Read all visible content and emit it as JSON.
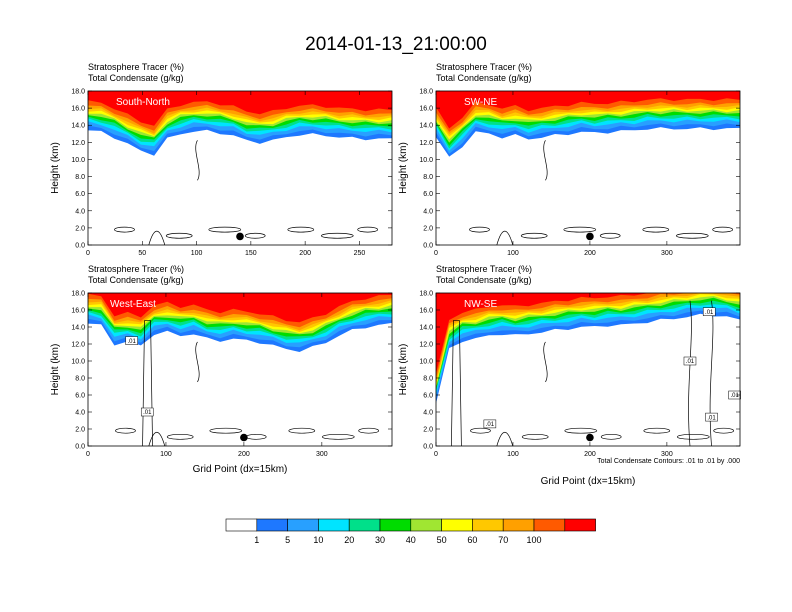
{
  "title": "2014-01-13_21:00:00",
  "colors": {
    "levels": [
      "#ffffff",
      "#1e78ff",
      "#28a0ff",
      "#00e4ff",
      "#00e08a",
      "#00dc00",
      "#a0e632",
      "#ffff00",
      "#ffc800",
      "#ffa000",
      "#ff5a00",
      "#ff0000"
    ],
    "marker": "#000000",
    "contour": "#000000"
  },
  "footnote": "Total Condensate Contours: .01 to .01 by .000",
  "x_axis_title": "Grid Point (dx=15km)",
  "y_axis_title": "Height (km)",
  "colorbar": {
    "labels": [
      "1",
      "5",
      "10",
      "20",
      "30",
      "40",
      "50",
      "60",
      "70",
      "100"
    ]
  },
  "chart_data": [
    {
      "type": "heatmap",
      "subtitle_left_1": "Stratosphere Tracer   (%)",
      "subtitle_left_2": "Total Condensate   (g/kg)",
      "panel_label": "South-North",
      "ylabel": "Height (km)",
      "xlabel": "",
      "xlim": [
        0,
        280
      ],
      "ylim": [
        0,
        18
      ],
      "xticks": [
        "0",
        "50",
        "100",
        "150",
        "200",
        "250"
      ],
      "xtick_values": [
        0,
        50,
        100,
        150,
        200,
        250
      ],
      "yticks": [
        "0.0",
        "2.0",
        "4.0",
        "6.0",
        "8.0",
        "10.0",
        "12.0",
        "14.0",
        "16.0",
        "18.0"
      ],
      "ytick_values": [
        0,
        2,
        4,
        6,
        8,
        10,
        12,
        14,
        16,
        18
      ],
      "marker_point": [
        140,
        1.0
      ],
      "tropopause_km": [
        14.4,
        14.2,
        13.6,
        12.8,
        12.0,
        11.6,
        13.4,
        14.0,
        14.3,
        14.3,
        14.1,
        13.8,
        13.2,
        13.0,
        13.2,
        13.6,
        13.9,
        13.9,
        13.8,
        13.6,
        13.5,
        13.4,
        13.4,
        13.4
      ],
      "contour_labels": []
    },
    {
      "type": "heatmap",
      "subtitle_left_1": "Stratosphere Tracer   (%)",
      "subtitle_left_2": "Total Condensate   (g/kg)",
      "panel_label": "SW-NE",
      "ylabel": "Height (km)",
      "xlabel": "",
      "xlim": [
        0,
        395
      ],
      "ylim": [
        0,
        18
      ],
      "xticks": [
        "0",
        "100",
        "200",
        "300"
      ],
      "xtick_values": [
        0,
        100,
        200,
        300
      ],
      "yticks": [
        "0.0",
        "2.0",
        "4.0",
        "6.0",
        "8.0",
        "10.0",
        "12.0",
        "14.0",
        "16.0",
        "18.0"
      ],
      "ytick_values": [
        0,
        2,
        4,
        6,
        8,
        10,
        12,
        14,
        16,
        18
      ],
      "marker_point": [
        200,
        1.0
      ],
      "tropopause_km": [
        13.6,
        11.2,
        12.6,
        14.2,
        14.0,
        13.6,
        13.8,
        13.4,
        13.6,
        13.8,
        14.0,
        14.2,
        14.1,
        14.2,
        14.3,
        14.4,
        14.6,
        14.6,
        14.6,
        14.6,
        14.6,
        14.6,
        14.6,
        14.6
      ],
      "contour_labels": []
    },
    {
      "type": "heatmap",
      "subtitle_left_1": "Stratosphere Tracer   (%)",
      "subtitle_left_2": "Total Condensate   (g/kg)",
      "panel_label": "West-East",
      "ylabel": "Height (km)",
      "xlabel": "Grid Point (dx=15km)",
      "xlim": [
        0,
        390
      ],
      "ylim": [
        0,
        18
      ],
      "xticks": [
        "0",
        "100",
        "200",
        "300"
      ],
      "xtick_values": [
        0,
        100,
        200,
        300
      ],
      "yticks": [
        "0.0",
        "2.0",
        "4.0",
        "6.0",
        "8.0",
        "10.0",
        "12.0",
        "14.0",
        "16.0",
        "18.0"
      ],
      "ytick_values": [
        0,
        2,
        4,
        6,
        8,
        10,
        12,
        14,
        16,
        18
      ],
      "marker_point": [
        200,
        1.0
      ],
      "tropopause_km": [
        15.4,
        15.2,
        13.0,
        13.2,
        12.8,
        14.2,
        14.4,
        14.0,
        14.2,
        13.6,
        13.4,
        13.6,
        13.4,
        13.2,
        12.8,
        12.4,
        12.2,
        12.6,
        13.2,
        14.0,
        14.6,
        15.0,
        15.2,
        15.4
      ],
      "contour_labels": [
        {
          "text": ".01",
          "x": 56,
          "y": 12.4
        },
        {
          "text": ".01",
          "x": 76,
          "y": 4.0
        }
      ]
    },
    {
      "type": "heatmap",
      "subtitle_left_1": "Stratosphere Tracer   (%)",
      "subtitle_left_2": "Total Condensate   (g/kg)",
      "panel_label": "NW-SE",
      "ylabel": "Height (km)",
      "xlabel": "Grid Point (dx=15km)",
      "xlim": [
        0,
        395
      ],
      "ylim": [
        0,
        18
      ],
      "xticks": [
        "0",
        "100",
        "200",
        "300"
      ],
      "xtick_values": [
        0,
        100,
        200,
        300
      ],
      "yticks": [
        "0.0",
        "2.0",
        "4.0",
        "6.0",
        "8.0",
        "10.0",
        "12.0",
        "14.0",
        "16.0",
        "18.0"
      ],
      "ytick_values": [
        0,
        2,
        4,
        6,
        8,
        10,
        12,
        14,
        16,
        18
      ],
      "marker_point": [
        200,
        1.0
      ],
      "tropopause_km": [
        6.0,
        12.4,
        13.4,
        13.6,
        14.0,
        14.2,
        14.0,
        14.2,
        14.4,
        14.6,
        14.8,
        15.0,
        15.0,
        15.2,
        15.2,
        15.4,
        15.6,
        15.8,
        16.0,
        16.2,
        16.4,
        16.4,
        16.2,
        15.8
      ],
      "contour_labels": [
        {
          "text": ".01",
          "x": 70,
          "y": 2.6
        },
        {
          "text": ".01",
          "x": 330,
          "y": 10.0
        },
        {
          "text": ".01",
          "x": 358,
          "y": 3.4
        },
        {
          "text": ".01",
          "x": 355,
          "y": 15.8
        },
        {
          "text": ".01",
          "x": 388,
          "y": 6.0
        }
      ]
    }
  ]
}
